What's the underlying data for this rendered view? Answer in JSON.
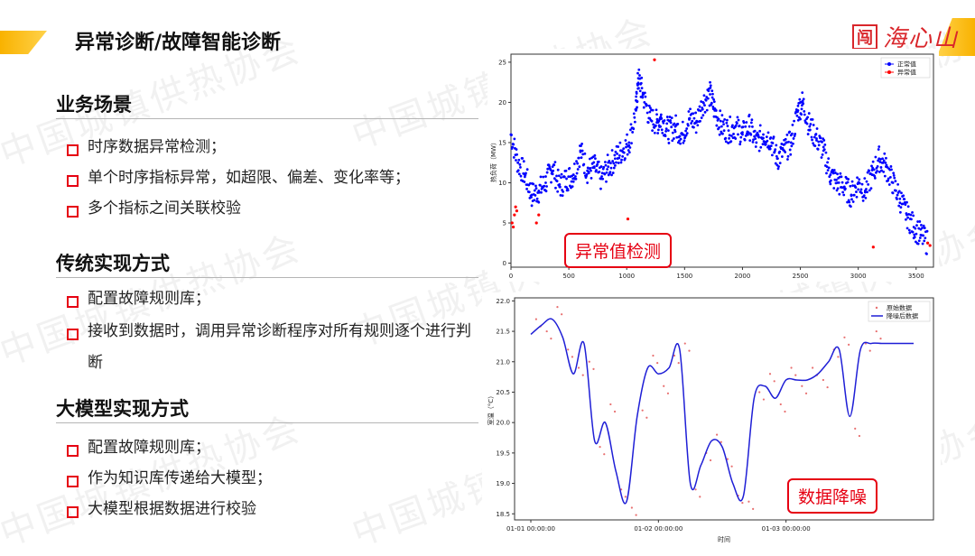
{
  "page_title": "异常诊断/故障智能诊断",
  "watermark": "中国城镇供热协会",
  "logo": {
    "text": "海心山",
    "seal": "闯"
  },
  "sections": [
    {
      "heading": "业务场景",
      "bullets": [
        "时序数据异常检测；",
        "单个时序指标异常，如超限、偏差、变化率等；",
        "多个指标之间关联校验"
      ]
    },
    {
      "heading": "传统实现方式",
      "bullets": [
        "配置故障规则库；",
        "接收到数据时，调用异常诊断程序对所有规则逐个进行判断"
      ]
    },
    {
      "heading": "大模型实现方式",
      "bullets": [
        "配置故障规则库；",
        "作为知识库传递给大模型；",
        "大模型根据数据进行校验"
      ]
    }
  ],
  "tags": {
    "anomaly": "异常值检测",
    "denoise": "数据降噪"
  },
  "chart_data": [
    {
      "type": "scatter",
      "title": "",
      "xlabel": "",
      "ylabel": "热负荷（MW）",
      "xlim": [
        0,
        3650
      ],
      "ylim": [
        -0.5,
        26
      ],
      "xticks": [
        0,
        500,
        1000,
        1500,
        2000,
        2500,
        3000,
        3500
      ],
      "yticks": [
        0,
        5,
        10,
        15,
        20,
        25
      ],
      "legend": {
        "placement": "top-right",
        "entries": [
          "正常值",
          "异常值"
        ]
      },
      "colors": {
        "normal": "#0000ff",
        "anomaly": "#ff0000"
      },
      "series": [
        {
          "name": "正常值",
          "x": [
            0,
            60,
            120,
            180,
            240,
            300,
            360,
            420,
            480,
            540,
            600,
            660,
            720,
            780,
            840,
            900,
            960,
            1020,
            1080,
            1100,
            1140,
            1200,
            1260,
            1300,
            1360,
            1420,
            1480,
            1540,
            1600,
            1660,
            1720,
            1760,
            1820,
            1880,
            1940,
            2000,
            2060,
            2120,
            2180,
            2240,
            2300,
            2360,
            2420,
            2480,
            2520,
            2580,
            2640,
            2700,
            2760,
            2820,
            2880,
            2940,
            3000,
            3060,
            3120,
            3180,
            3240,
            3300,
            3360,
            3420,
            3480,
            3540,
            3600
          ],
          "y": [
            16,
            12.5,
            11,
            8.5,
            9,
            10,
            12,
            9.5,
            10.5,
            11,
            14,
            11.5,
            12,
            10.5,
            12,
            13,
            14,
            15,
            19,
            23,
            21,
            18,
            17.5,
            18,
            16.5,
            17,
            16,
            18,
            17.5,
            20,
            21,
            19,
            17,
            16.5,
            17,
            16,
            17,
            15,
            16,
            15.5,
            13,
            14,
            15,
            19,
            20,
            17,
            15.5,
            14,
            11,
            10,
            9.5,
            8.5,
            10,
            9,
            11,
            13,
            12,
            10,
            8,
            6,
            4.5,
            3.5,
            2.5
          ]
        },
        {
          "name": "异常值",
          "x": [
            10,
            20,
            30,
            40,
            50,
            220,
            240,
            1010,
            1240,
            3130,
            3600,
            3620
          ],
          "y": [
            5,
            4.5,
            6,
            7,
            6.5,
            5,
            6,
            5.5,
            25.3,
            2,
            2.5,
            2.2
          ]
        }
      ]
    },
    {
      "type": "line",
      "title": "",
      "xlabel": "时间",
      "ylabel": "室温（°C）",
      "ylim": [
        18.4,
        22.05
      ],
      "yticks": [
        18.5,
        19.0,
        19.5,
        20.0,
        20.5,
        21.0,
        21.5,
        22.0
      ],
      "xticks": [
        "01-01 00:00:00",
        "01-02 00:00:00",
        "01-03 00:00:00"
      ],
      "legend": {
        "placement": "top-right",
        "entries": [
          "原始数据",
          "降噪后数据"
        ]
      },
      "colors": {
        "raw": "#e87070",
        "smooth": "#1f1fd6"
      },
      "series": [
        {
          "name": "降噪后数据",
          "x": [
            0,
            2,
            4,
            6,
            8,
            10,
            12,
            14,
            16,
            18,
            20,
            22,
            24,
            26,
            28,
            30,
            32,
            34,
            36,
            38,
            40,
            42,
            44,
            46,
            48,
            50,
            52,
            54,
            56,
            58,
            60,
            62,
            64,
            66,
            68,
            70,
            72
          ],
          "y": [
            21.45,
            21.6,
            21.7,
            21.4,
            20.8,
            21.3,
            19.7,
            20.0,
            19.2,
            18.7,
            20.1,
            20.9,
            20.8,
            20.9,
            21.2,
            19.0,
            19.3,
            19.7,
            19.6,
            19.0,
            18.8,
            20.4,
            20.6,
            20.4,
            20.7,
            20.7,
            20.7,
            20.8,
            21.0,
            21.2,
            20.1,
            21.2,
            21.3,
            21.3,
            21.3,
            21.3,
            21.3
          ]
        },
        {
          "name": "原始数据",
          "x": [
            1,
            3,
            5,
            7,
            9,
            11,
            13,
            15,
            17,
            19,
            21,
            23,
            25,
            27,
            29,
            31,
            33,
            35,
            37,
            39,
            41,
            43,
            45,
            47,
            49,
            51,
            53,
            55,
            57,
            59,
            61,
            63,
            65
          ],
          "y": [
            21.7,
            21.5,
            21.9,
            21.2,
            20.9,
            21.0,
            19.6,
            20.3,
            18.9,
            18.6,
            20.2,
            21.1,
            20.6,
            21.1,
            21.3,
            18.9,
            19.5,
            19.8,
            19.4,
            18.8,
            18.7,
            20.5,
            20.8,
            20.3,
            20.9,
            20.6,
            20.9,
            20.7,
            21.2,
            21.4,
            19.9,
            21.3,
            21.5
          ]
        }
      ]
    }
  ]
}
